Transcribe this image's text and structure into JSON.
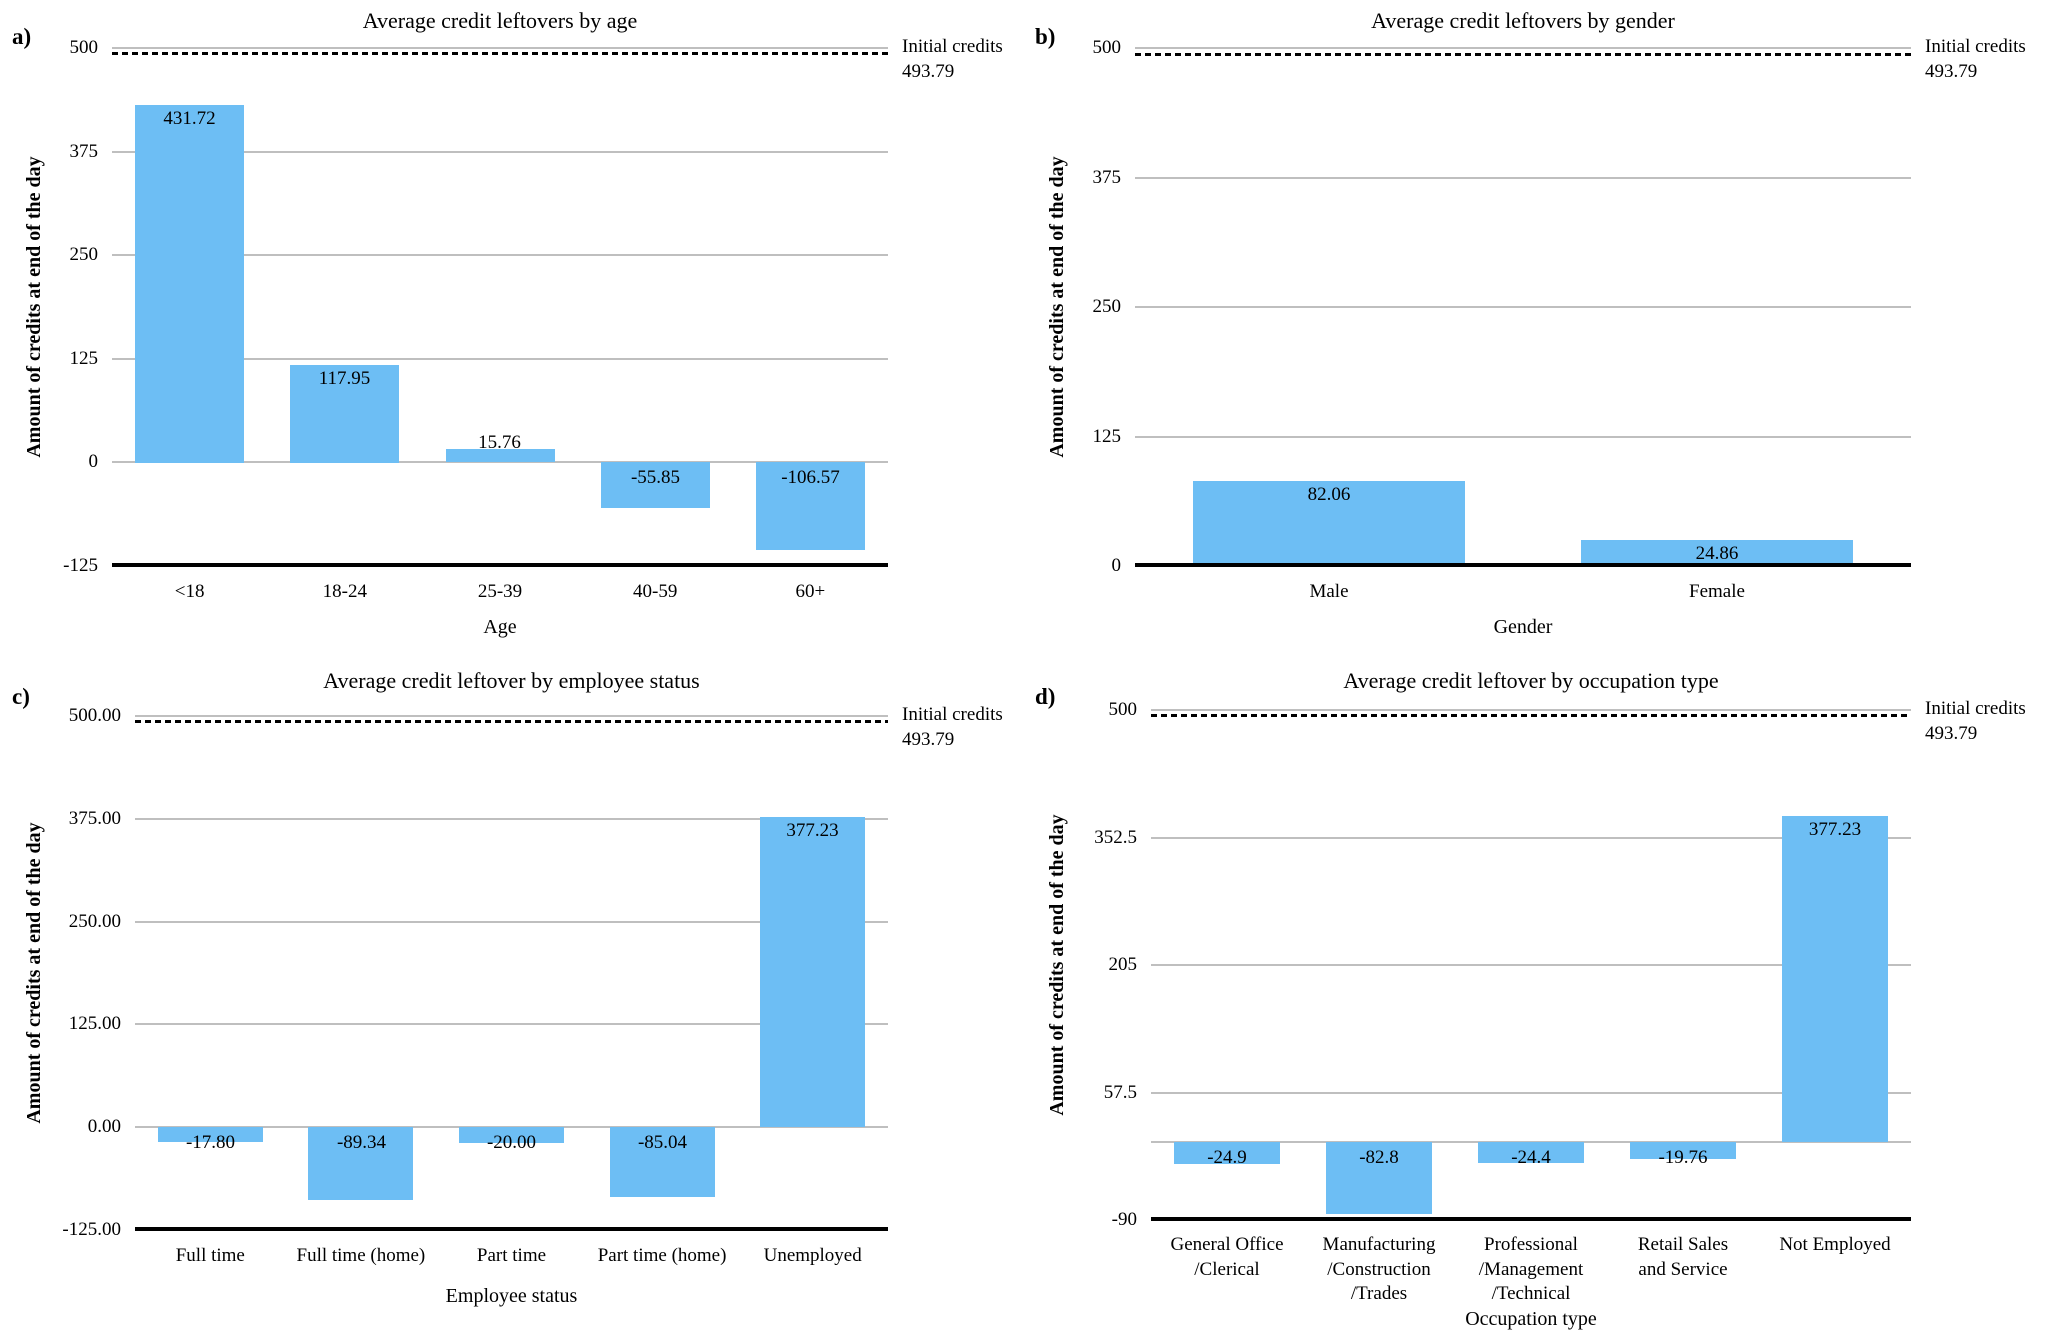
{
  "styles": {
    "bar_color": "#6DBEF4",
    "gridline_color": "#BFBFBF",
    "axis_color": "#000000",
    "reference_line_color": "#000000",
    "text_color": "#000000",
    "background": "#FFFFFF"
  },
  "chart_data": [
    {
      "type": "bar",
      "panel_letter": "a)",
      "title": "Average credit leftovers by age",
      "xlabel": "Age",
      "ylabel": "Amount of credits at end of the day",
      "ylim": [
        -125,
        500
      ],
      "grid": true,
      "legend": "none",
      "yticks": [
        {
          "value": 500,
          "label": "500"
        },
        {
          "value": 375,
          "label": "375"
        },
        {
          "value": 250,
          "label": "250"
        },
        {
          "value": 125,
          "label": "125"
        },
        {
          "value": 0,
          "label": "0"
        },
        {
          "value": -125,
          "label": "-125"
        }
      ],
      "categories": [
        [
          "<18"
        ],
        [
          "18-24"
        ],
        [
          "25-39"
        ],
        [
          "40-59"
        ],
        [
          "60+"
        ]
      ],
      "values": [
        431.72,
        117.95,
        15.76,
        -55.85,
        -106.57
      ],
      "value_labels": [
        "431.72",
        "117.95",
        "15.76",
        "-55.85",
        "-106.57"
      ],
      "reference_line": {
        "value": 493.79,
        "label": "Initial credits",
        "value_label": "493.79"
      }
    },
    {
      "type": "bar",
      "panel_letter": "b)",
      "title": "Average credit leftovers by gender",
      "xlabel": "Gender",
      "ylabel": "Amount of credits at end of the day",
      "ylim": [
        0,
        500
      ],
      "grid": true,
      "legend": "none",
      "yticks": [
        {
          "value": 500,
          "label": "500"
        },
        {
          "value": 375,
          "label": "375"
        },
        {
          "value": 250,
          "label": "250"
        },
        {
          "value": 125,
          "label": "125"
        },
        {
          "value": 0,
          "label": "0"
        }
      ],
      "categories": [
        [
          "Male"
        ],
        [
          "Female"
        ]
      ],
      "values": [
        82.06,
        24.86
      ],
      "value_labels": [
        "82.06",
        "24.86"
      ],
      "reference_line": {
        "value": 493.79,
        "label": "Initial credits",
        "value_label": "493.79"
      }
    },
    {
      "type": "bar",
      "panel_letter": "c)",
      "title": "Average credit leftover by employee status",
      "xlabel": "Employee status",
      "ylabel": "Amount of credits at end of the day",
      "ylim": [
        -125,
        500
      ],
      "grid": true,
      "legend": "none",
      "yticks": [
        {
          "value": 500,
          "label": "500.00"
        },
        {
          "value": 375,
          "label": "375.00"
        },
        {
          "value": 250,
          "label": "250.00"
        },
        {
          "value": 125,
          "label": "125.00"
        },
        {
          "value": 0,
          "label": "0.00"
        },
        {
          "value": -125,
          "label": "-125.00"
        }
      ],
      "categories": [
        [
          "Full time"
        ],
        [
          "Full time (home)"
        ],
        [
          "Part time"
        ],
        [
          "Part time (home)"
        ],
        [
          "Unemployed"
        ]
      ],
      "values": [
        -17.8,
        -89.34,
        -20.0,
        -85.04,
        377.23
      ],
      "value_labels": [
        "-17.80",
        "-89.34",
        "-20.00",
        "-85.04",
        "377.23"
      ],
      "reference_line": {
        "value": 493.79,
        "label": "Initial credits",
        "value_label": "493.79"
      }
    },
    {
      "type": "bar",
      "panel_letter": "d)",
      "title": "Average credit leftover by occupation type",
      "xlabel": "Occupation type",
      "ylabel": "Amount of credits at end of the day",
      "ylim": [
        -90,
        500
      ],
      "grid": true,
      "legend": "none",
      "yticks": [
        {
          "value": 500,
          "label": "500"
        },
        {
          "value": 352.5,
          "label": "352.5"
        },
        {
          "value": 205,
          "label": "205"
        },
        {
          "value": 57.5,
          "label": "57.5"
        },
        {
          "value": -90,
          "label": "-90"
        }
      ],
      "categories": [
        [
          "General Office",
          "/Clerical"
        ],
        [
          "Manufacturing",
          "/Construction",
          "/Trades"
        ],
        [
          "Professional",
          "/Management",
          "/Technical"
        ],
        [
          "Retail Sales",
          "and Service"
        ],
        [
          "Not Employed"
        ]
      ],
      "values": [
        -24.9,
        -82.8,
        -24.4,
        -19.76,
        377.23
      ],
      "value_labels": [
        "-24.9",
        "-82.8",
        "-24.4",
        "-19.76",
        "377.23"
      ],
      "reference_line": {
        "value": 493.79,
        "label": "Initial credits",
        "value_label": "493.79"
      }
    }
  ]
}
